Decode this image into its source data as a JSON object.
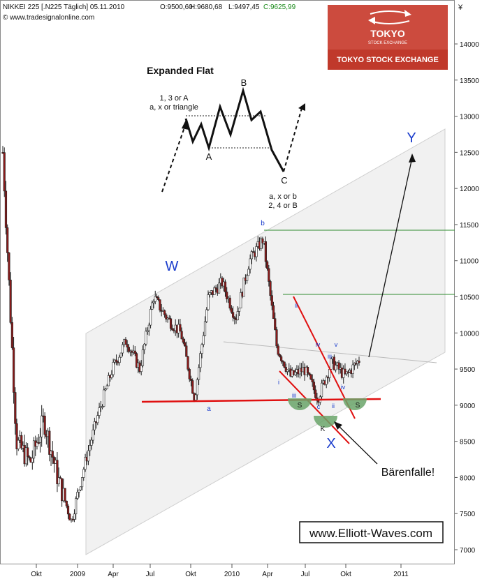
{
  "header": {
    "title": "NIKKEI 225 [.N225  Täglich] 05.11.2010",
    "open": "O:9500,60",
    "high": "H:9680,68",
    "low": "L:9497,45",
    "close": "C:9625,99",
    "source": "© www.tradesignalonline.com",
    "currency": "¥"
  },
  "logo": {
    "name": "TOKYO",
    "sub": "STOCK EXCHANGE",
    "caption": "TOKYO STOCK EXCHANGE"
  },
  "diagram": {
    "title": "Expanded Flat",
    "left_note_1": "1, 3 or A",
    "left_note_2": "a, x or triangle",
    "label_a": "A",
    "label_b": "B",
    "label_c": "C",
    "right_note_1": "a, x or b",
    "right_note_2": "2, 4 or B"
  },
  "annotations": {
    "W": "W",
    "X": "X",
    "Y": "Y",
    "a": "a",
    "b": "b",
    "i": "i",
    "ii": "ii",
    "iii": "iii",
    "iv": "iv",
    "v": "v",
    "c": "c",
    "S": "S",
    "K": "K",
    "barenfalle": "Bärenfalle!",
    "website": "www.Elliott-Waves.com"
  },
  "colors": {
    "candle_up": "#ffffff",
    "candle_down": "#8b1a1a",
    "support": "#e01010",
    "wave_label": "#1a3ccc",
    "resistance": "#2e8b2e",
    "shoulder": "#5a9a5a",
    "logo_bg": "#c0392b"
  },
  "chart_data": {
    "type": "candlestick",
    "title": "NIKKEI 225",
    "xlabel": "",
    "ylabel": "",
    "x_ticks": [
      "Okt",
      "2009",
      "Apr",
      "Jul",
      "Okt",
      "2010",
      "Apr",
      "Jul",
      "Okt",
      "2011"
    ],
    "y_ticks": [
      7000,
      7500,
      8000,
      8500,
      9000,
      9500,
      10000,
      10500,
      11000,
      11500,
      12000,
      12500,
      13000,
      13500,
      14000
    ],
    "ylim": [
      6900,
      14300
    ],
    "grid": false,
    "series": [
      {
        "name": "NIKKEI 225",
        "points": [
          [
            "2008-09",
            12500
          ],
          [
            "2008-10",
            8500
          ],
          [
            "2008-11",
            8200
          ],
          [
            "2008-12",
            8800
          ],
          [
            "2009-01",
            8000
          ],
          [
            "2009-02",
            7400
          ],
          [
            "2009-03",
            8200
          ],
          [
            "2009-04",
            8900
          ],
          [
            "2009-05",
            9500
          ],
          [
            "2009-06",
            9900
          ],
          [
            "2009-07",
            9500
          ],
          [
            "2009-08",
            10500
          ],
          [
            "2009-09",
            10200
          ],
          [
            "2009-10",
            10000
          ],
          [
            "2009-11",
            9100
          ],
          [
            "2009-12",
            10500
          ],
          [
            "2010-01",
            10700
          ],
          [
            "2010-02",
            10200
          ],
          [
            "2010-03",
            11000
          ],
          [
            "2010-04",
            11300
          ],
          [
            "2010-05",
            9800
          ],
          [
            "2010-06",
            9400
          ],
          [
            "2010-07",
            9500
          ],
          [
            "2010-08",
            9100
          ],
          [
            "2010-09",
            9600
          ],
          [
            "2010-10",
            9400
          ],
          [
            "2010-11",
            9626
          ]
        ]
      }
    ],
    "levels": [
      {
        "label": "b",
        "value": 11430
      },
      {
        "label": "ii",
        "value": 10270
      },
      {
        "label": "a",
        "value": 9050
      }
    ],
    "wave_labels": [
      "W",
      "X",
      "Y",
      "a",
      "b",
      "i",
      "ii",
      "iii",
      "iv",
      "v",
      "c",
      "S",
      "K"
    ]
  }
}
